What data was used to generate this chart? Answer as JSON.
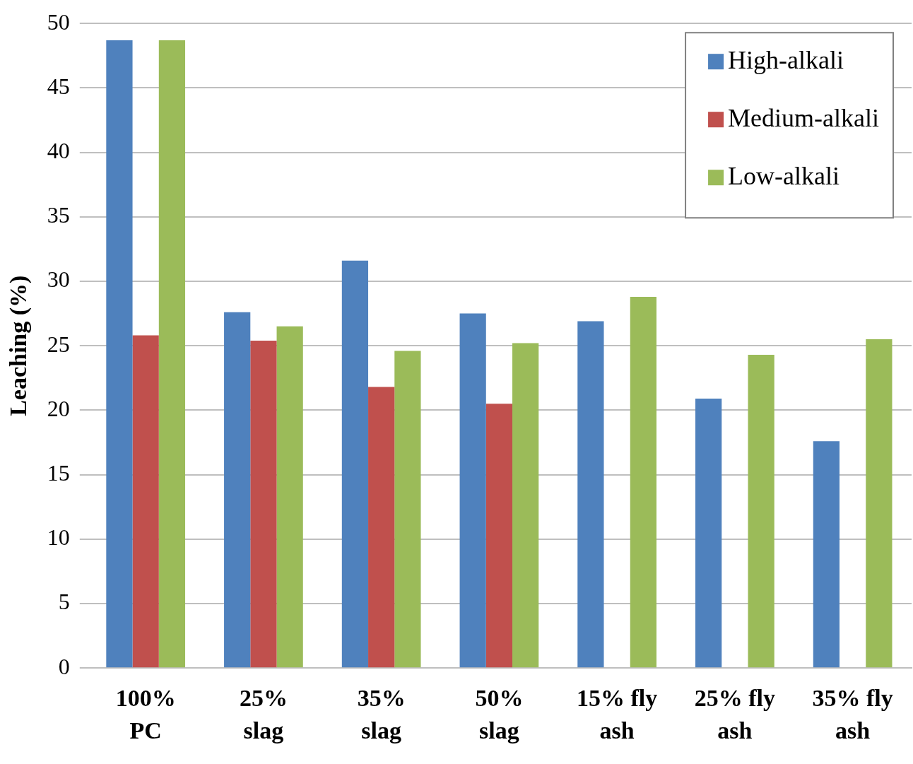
{
  "chart_data": {
    "type": "bar",
    "ylabel": "Leaching (%)",
    "categories": [
      "100% PC",
      "25% slag",
      "35% slag",
      "50% slag",
      "15% fly ash",
      "25% fly ash",
      "35% fly ash"
    ],
    "series": [
      {
        "name": "High-alkali",
        "color": "#4f81bd",
        "values": [
          48.7,
          27.6,
          31.6,
          27.5,
          26.9,
          20.9,
          17.6
        ]
      },
      {
        "name": "Medium-alkali",
        "color": "#c0504d",
        "values": [
          25.8,
          25.4,
          21.8,
          20.5,
          null,
          null,
          null
        ]
      },
      {
        "name": "Low-alkali",
        "color": "#9bbb59",
        "values": [
          48.7,
          26.5,
          24.6,
          25.2,
          28.8,
          24.3,
          25.5
        ]
      }
    ],
    "ylim": [
      0,
      50
    ],
    "yticks": [
      0,
      5,
      10,
      15,
      20,
      25,
      30,
      35,
      40,
      45,
      50
    ],
    "grid": "y",
    "legend": "top right"
  }
}
